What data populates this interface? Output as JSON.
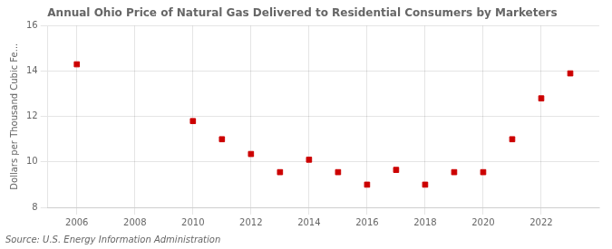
{
  "chart_data": {
    "type": "scatter",
    "title": "Annual Ohio Price of Natural Gas Delivered to Residential Consumers by Marketers",
    "y_label": "Dollars per Thousand Cubic Fe...",
    "annotations": [
      "Source: U.S. Energy Information Administration"
    ],
    "x": [
      2006,
      2010,
      2011,
      2012,
      2013,
      2014,
      2015,
      2016,
      2017,
      2018,
      2019,
      2020,
      2021,
      2022,
      2023
    ],
    "values": [
      14.3,
      11.8,
      11.0,
      10.35,
      9.55,
      10.1,
      9.55,
      9.0,
      9.65,
      9.0,
      9.55,
      9.55,
      11.0,
      12.8,
      13.9
    ],
    "color": "#cc0000",
    "marker": "square",
    "xlim": [
      2005.0,
      2024.0
    ],
    "xticks": [
      2006,
      2008,
      2010,
      2012,
      2014,
      2016,
      2018,
      2020,
      2022
    ],
    "ylim": [
      8,
      16
    ],
    "yticks": [
      8,
      10,
      12,
      14,
      16
    ],
    "grid": true
  }
}
